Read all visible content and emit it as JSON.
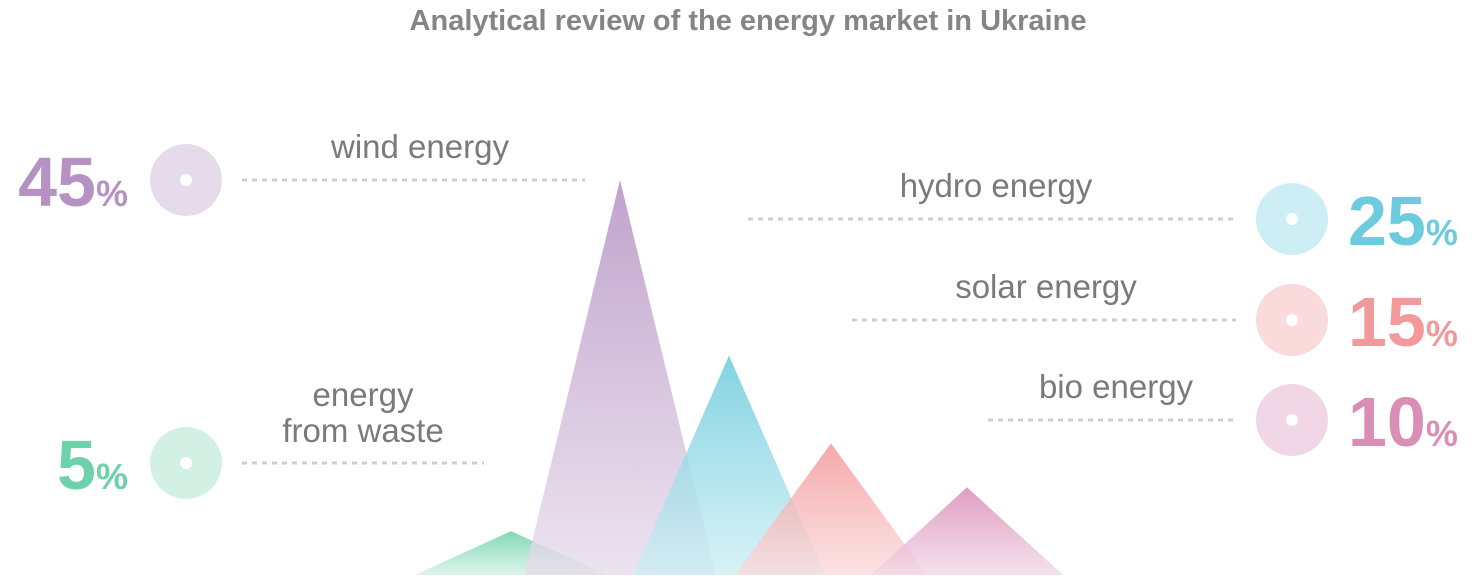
{
  "chart_data": {
    "type": "area",
    "title": "Analytical review of the energy market in Ukraine",
    "unit": "%",
    "series": [
      {
        "name": "wind energy",
        "value": 45,
        "color": "#b592c3",
        "light": "#e6dbea",
        "label_lines": [
          "wind energy"
        ]
      },
      {
        "name": "hydro energy",
        "value": 25,
        "color": "#6ccbdc",
        "light": "#cdeef4",
        "label_lines": [
          "hydro energy"
        ]
      },
      {
        "name": "solar energy",
        "value": 15,
        "color": "#f2999b",
        "light": "#fbdadb",
        "label_lines": [
          "solar energy"
        ]
      },
      {
        "name": "bio energy",
        "value": 10,
        "color": "#da8db5",
        "light": "#f1d7e6",
        "label_lines": [
          "bio energy"
        ]
      },
      {
        "name": "energy from waste",
        "value": 5,
        "color": "#6dd1aa",
        "light": "#d2f1e4",
        "label_lines": [
          "energy",
          "from waste"
        ]
      }
    ]
  }
}
